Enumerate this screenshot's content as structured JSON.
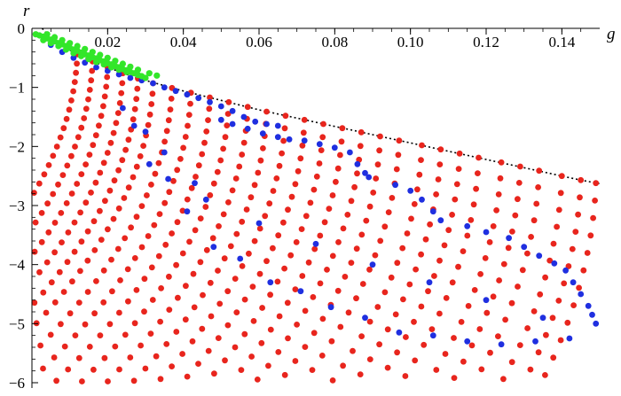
{
  "chart_data": {
    "type": "scatter",
    "title": "",
    "xlabel": "g",
    "ylabel": "r",
    "xlim": [
      0,
      0.15
    ],
    "ylim": [
      -6,
      0
    ],
    "grid": false,
    "x_ticks": [
      0.02,
      0.04,
      0.06,
      0.08,
      0.1,
      0.12,
      0.14
    ],
    "x_tick_labels": [
      "0.02",
      "0.04",
      "0.06",
      "0.08",
      "0.10",
      "0.12",
      "0.14"
    ],
    "y_ticks": [
      0,
      -1,
      -2,
      -3,
      -4,
      -5,
      -6
    ],
    "y_tick_labels": [
      "0",
      "−1",
      "−2",
      "−3",
      "−4",
      "−5",
      "−6"
    ],
    "colors": {
      "red": "#e8251d",
      "blue": "#1f2fe0",
      "green": "#33e62a",
      "boundary": "#000000"
    },
    "boundary_curve": {
      "style": "dotted",
      "points": [
        [
          0.0027,
          0
        ],
        [
          0.005,
          -0.17
        ],
        [
          0.008,
          -0.3
        ],
        [
          0.012,
          -0.44
        ],
        [
          0.016,
          -0.56
        ],
        [
          0.02,
          -0.66
        ],
        [
          0.025,
          -0.78
        ],
        [
          0.03,
          -0.88
        ],
        [
          0.035,
          -0.97
        ],
        [
          0.04,
          -1.06
        ],
        [
          0.045,
          -1.14
        ],
        [
          0.05,
          -1.22
        ],
        [
          0.055,
          -1.3
        ],
        [
          0.06,
          -1.38
        ],
        [
          0.065,
          -1.45
        ],
        [
          0.07,
          -1.52
        ],
        [
          0.075,
          -1.59
        ],
        [
          0.08,
          -1.66
        ],
        [
          0.085,
          -1.73
        ],
        [
          0.09,
          -1.8
        ],
        [
          0.095,
          -1.87
        ],
        [
          0.1,
          -1.94
        ],
        [
          0.105,
          -2.01
        ],
        [
          0.11,
          -2.08
        ],
        [
          0.115,
          -2.15
        ],
        [
          0.12,
          -2.22
        ],
        [
          0.125,
          -2.29
        ],
        [
          0.13,
          -2.36
        ],
        [
          0.135,
          -2.43
        ],
        [
          0.14,
          -2.5
        ],
        [
          0.145,
          -2.57
        ],
        [
          0.15,
          -2.63
        ]
      ]
    },
    "red_families": [
      {
        "gmax": 0.012,
        "rmax": -0.44
      },
      {
        "gmax": 0.016,
        "rmax": -0.56
      },
      {
        "gmax": 0.02,
        "rmax": -0.66
      },
      {
        "gmax": 0.024,
        "rmax": -0.76
      },
      {
        "gmax": 0.028,
        "rmax": -0.85
      },
      {
        "gmax": 0.032,
        "rmax": -0.93
      },
      {
        "gmax": 0.037,
        "rmax": -1.01
      },
      {
        "gmax": 0.042,
        "rmax": -1.09
      },
      {
        "gmax": 0.047,
        "rmax": -1.17
      },
      {
        "gmax": 0.052,
        "rmax": -1.25
      },
      {
        "gmax": 0.057,
        "rmax": -1.33
      },
      {
        "gmax": 0.062,
        "rmax": -1.41
      },
      {
        "gmax": 0.067,
        "rmax": -1.48
      },
      {
        "gmax": 0.072,
        "rmax": -1.55
      },
      {
        "gmax": 0.077,
        "rmax": -1.62
      },
      {
        "gmax": 0.082,
        "rmax": -1.69
      },
      {
        "gmax": 0.087,
        "rmax": -1.76
      },
      {
        "gmax": 0.092,
        "rmax": -1.83
      },
      {
        "gmax": 0.097,
        "rmax": -1.9
      },
      {
        "gmax": 0.103,
        "rmax": -1.98
      },
      {
        "gmax": 0.108,
        "rmax": -2.05
      },
      {
        "gmax": 0.113,
        "rmax": -2.12
      },
      {
        "gmax": 0.118,
        "rmax": -2.19
      },
      {
        "gmax": 0.124,
        "rmax": -2.27
      },
      {
        "gmax": 0.129,
        "rmax": -2.34
      },
      {
        "gmax": 0.134,
        "rmax": -2.41
      },
      {
        "gmax": 0.14,
        "rmax": -2.5
      },
      {
        "gmax": 0.145,
        "rmax": -2.57
      },
      {
        "gmax": 0.149,
        "rmax": -2.62
      }
    ],
    "blue_points": [
      [
        0.005,
        -0.28
      ],
      [
        0.008,
        -0.4
      ],
      [
        0.011,
        -0.5
      ],
      [
        0.014,
        -0.58
      ],
      [
        0.017,
        -0.66
      ],
      [
        0.02,
        -0.72
      ],
      [
        0.023,
        -0.78
      ],
      [
        0.026,
        -0.84
      ],
      [
        0.029,
        -0.88
      ],
      [
        0.032,
        -0.93
      ],
      [
        0.035,
        -1.0
      ],
      [
        0.038,
        -1.06
      ],
      [
        0.041,
        -1.12
      ],
      [
        0.044,
        -1.18
      ],
      [
        0.047,
        -1.25
      ],
      [
        0.05,
        -1.32
      ],
      [
        0.053,
        -1.4
      ],
      [
        0.056,
        -1.5
      ],
      [
        0.059,
        -1.58
      ],
      [
        0.062,
        -1.62
      ],
      [
        0.065,
        -1.65
      ],
      [
        0.05,
        -1.55
      ],
      [
        0.053,
        -1.62
      ],
      [
        0.057,
        -1.7
      ],
      [
        0.061,
        -1.78
      ],
      [
        0.065,
        -1.84
      ],
      [
        0.068,
        -1.88
      ],
      [
        0.072,
        -1.9
      ],
      [
        0.076,
        -1.96
      ],
      [
        0.08,
        -2.02
      ],
      [
        0.084,
        -2.1
      ],
      [
        0.086,
        -2.3
      ],
      [
        0.088,
        -2.45
      ],
      [
        0.089,
        -2.52
      ],
      [
        0.096,
        -2.65
      ],
      [
        0.1,
        -2.75
      ],
      [
        0.103,
        -2.9
      ],
      [
        0.106,
        -3.1
      ],
      [
        0.108,
        -3.25
      ],
      [
        0.115,
        -3.35
      ],
      [
        0.12,
        -3.45
      ],
      [
        0.126,
        -3.55
      ],
      [
        0.13,
        -3.7
      ],
      [
        0.134,
        -3.85
      ],
      [
        0.138,
        -3.98
      ],
      [
        0.141,
        -4.1
      ],
      [
        0.143,
        -4.3
      ],
      [
        0.145,
        -4.5
      ],
      [
        0.147,
        -4.7
      ],
      [
        0.148,
        -4.85
      ],
      [
        0.149,
        -5.0
      ],
      [
        0.027,
        -1.65
      ],
      [
        0.043,
        -2.62
      ],
      [
        0.031,
        -2.3
      ],
      [
        0.036,
        -2.55
      ],
      [
        0.041,
        -3.1
      ],
      [
        0.048,
        -3.7
      ],
      [
        0.055,
        -3.9
      ],
      [
        0.063,
        -4.3
      ],
      [
        0.071,
        -4.45
      ],
      [
        0.079,
        -4.72
      ],
      [
        0.088,
        -4.9
      ],
      [
        0.097,
        -5.15
      ],
      [
        0.106,
        -5.2
      ],
      [
        0.115,
        -5.3
      ],
      [
        0.124,
        -5.35
      ],
      [
        0.133,
        -5.3
      ],
      [
        0.142,
        -5.25
      ],
      [
        0.024,
        -1.35
      ],
      [
        0.03,
        -1.75
      ],
      [
        0.035,
        -2.1
      ],
      [
        0.046,
        -2.9
      ],
      [
        0.06,
        -3.3
      ],
      [
        0.075,
        -3.65
      ],
      [
        0.09,
        -4.0
      ],
      [
        0.105,
        -4.3
      ],
      [
        0.12,
        -4.6
      ],
      [
        0.135,
        -4.9
      ]
    ],
    "green_points": [
      [
        0.001,
        -0.1
      ],
      [
        0.002,
        -0.12
      ],
      [
        0.003,
        -0.14
      ],
      [
        0.004,
        -0.17
      ],
      [
        0.005,
        -0.19
      ],
      [
        0.006,
        -0.22
      ],
      [
        0.007,
        -0.25
      ],
      [
        0.008,
        -0.27
      ],
      [
        0.009,
        -0.3
      ],
      [
        0.01,
        -0.33
      ],
      [
        0.011,
        -0.36
      ],
      [
        0.012,
        -0.38
      ],
      [
        0.013,
        -0.41
      ],
      [
        0.014,
        -0.44
      ],
      [
        0.015,
        -0.46
      ],
      [
        0.016,
        -0.49
      ],
      [
        0.017,
        -0.51
      ],
      [
        0.018,
        -0.54
      ],
      [
        0.019,
        -0.56
      ],
      [
        0.02,
        -0.59
      ],
      [
        0.021,
        -0.61
      ],
      [
        0.022,
        -0.64
      ],
      [
        0.023,
        -0.66
      ],
      [
        0.024,
        -0.69
      ],
      [
        0.025,
        -0.71
      ],
      [
        0.026,
        -0.74
      ],
      [
        0.027,
        -0.76
      ],
      [
        0.028,
        -0.79
      ],
      [
        0.029,
        -0.81
      ],
      [
        0.03,
        -0.84
      ],
      [
        0.003,
        -0.2
      ],
      [
        0.005,
        -0.25
      ],
      [
        0.007,
        -0.3
      ],
      [
        0.009,
        -0.36
      ],
      [
        0.011,
        -0.42
      ],
      [
        0.013,
        -0.47
      ],
      [
        0.015,
        -0.52
      ],
      [
        0.017,
        -0.57
      ],
      [
        0.019,
        -0.61
      ],
      [
        0.021,
        -0.66
      ],
      [
        0.023,
        -0.7
      ],
      [
        0.025,
        -0.74
      ],
      [
        0.004,
        -0.1
      ],
      [
        0.006,
        -0.15
      ],
      [
        0.008,
        -0.2
      ],
      [
        0.01,
        -0.25
      ],
      [
        0.012,
        -0.3
      ],
      [
        0.014,
        -0.35
      ],
      [
        0.016,
        -0.4
      ],
      [
        0.018,
        -0.45
      ],
      [
        0.02,
        -0.5
      ],
      [
        0.022,
        -0.55
      ],
      [
        0.024,
        -0.6
      ],
      [
        0.026,
        -0.65
      ],
      [
        0.028,
        -0.7
      ],
      [
        0.031,
        -0.76
      ],
      [
        0.033,
        -0.8
      ]
    ]
  }
}
